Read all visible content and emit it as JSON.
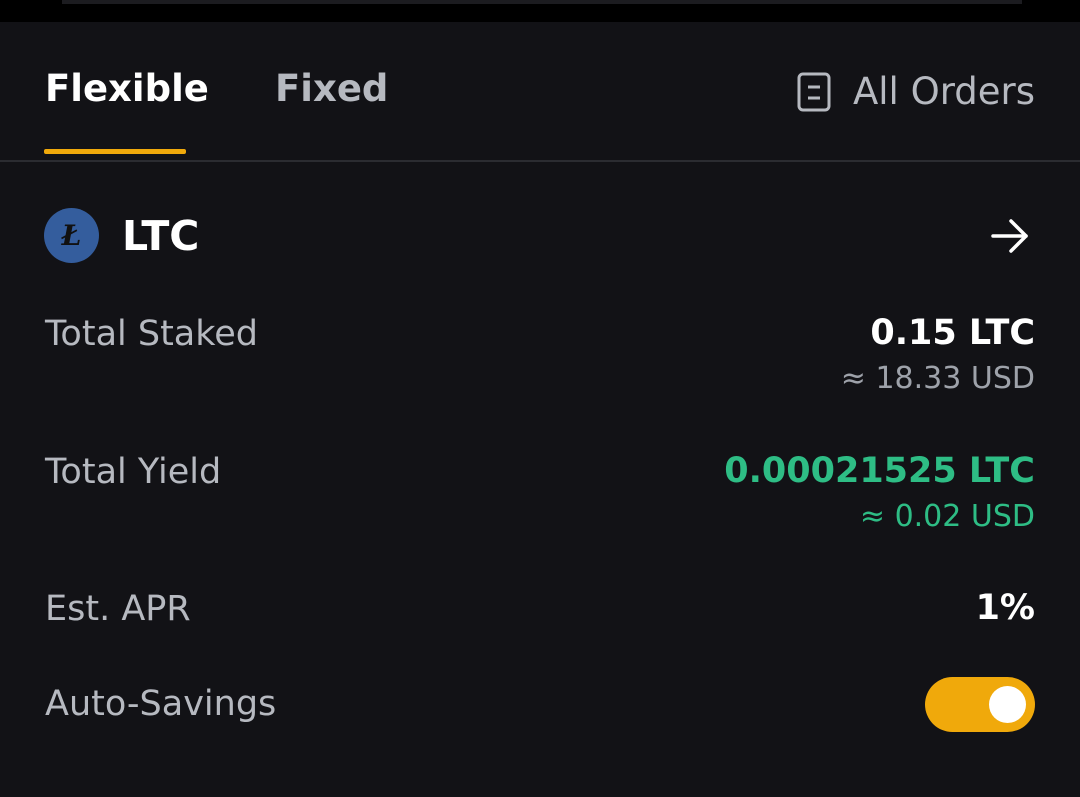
{
  "tabs": {
    "flexible": "Flexible",
    "fixed": "Fixed",
    "active": "flexible",
    "all_orders": "All Orders"
  },
  "asset": {
    "logo_symbol": "Ł",
    "name": "LTC"
  },
  "rows": {
    "total_staked": {
      "label": "Total Staked",
      "value": "0.15 LTC",
      "sub": "≈ 18.33 USD"
    },
    "total_yield": {
      "label": "Total Yield",
      "value": "0.00021525 LTC",
      "sub": "≈ 0.02 USD"
    },
    "est_apr": {
      "label": "Est. APR",
      "value": "1%"
    },
    "auto_savings": {
      "label": "Auto-Savings",
      "enabled": true
    }
  },
  "icons": {
    "orders": "document-list-icon",
    "details": "arrow-right-icon"
  },
  "colors": {
    "background": "#121216",
    "accent": "#f0a90b",
    "positive": "#2ebd85",
    "text_primary": "#ffffff",
    "text_secondary": "#b6b9c0",
    "ltc_brand": "#345d9d"
  }
}
